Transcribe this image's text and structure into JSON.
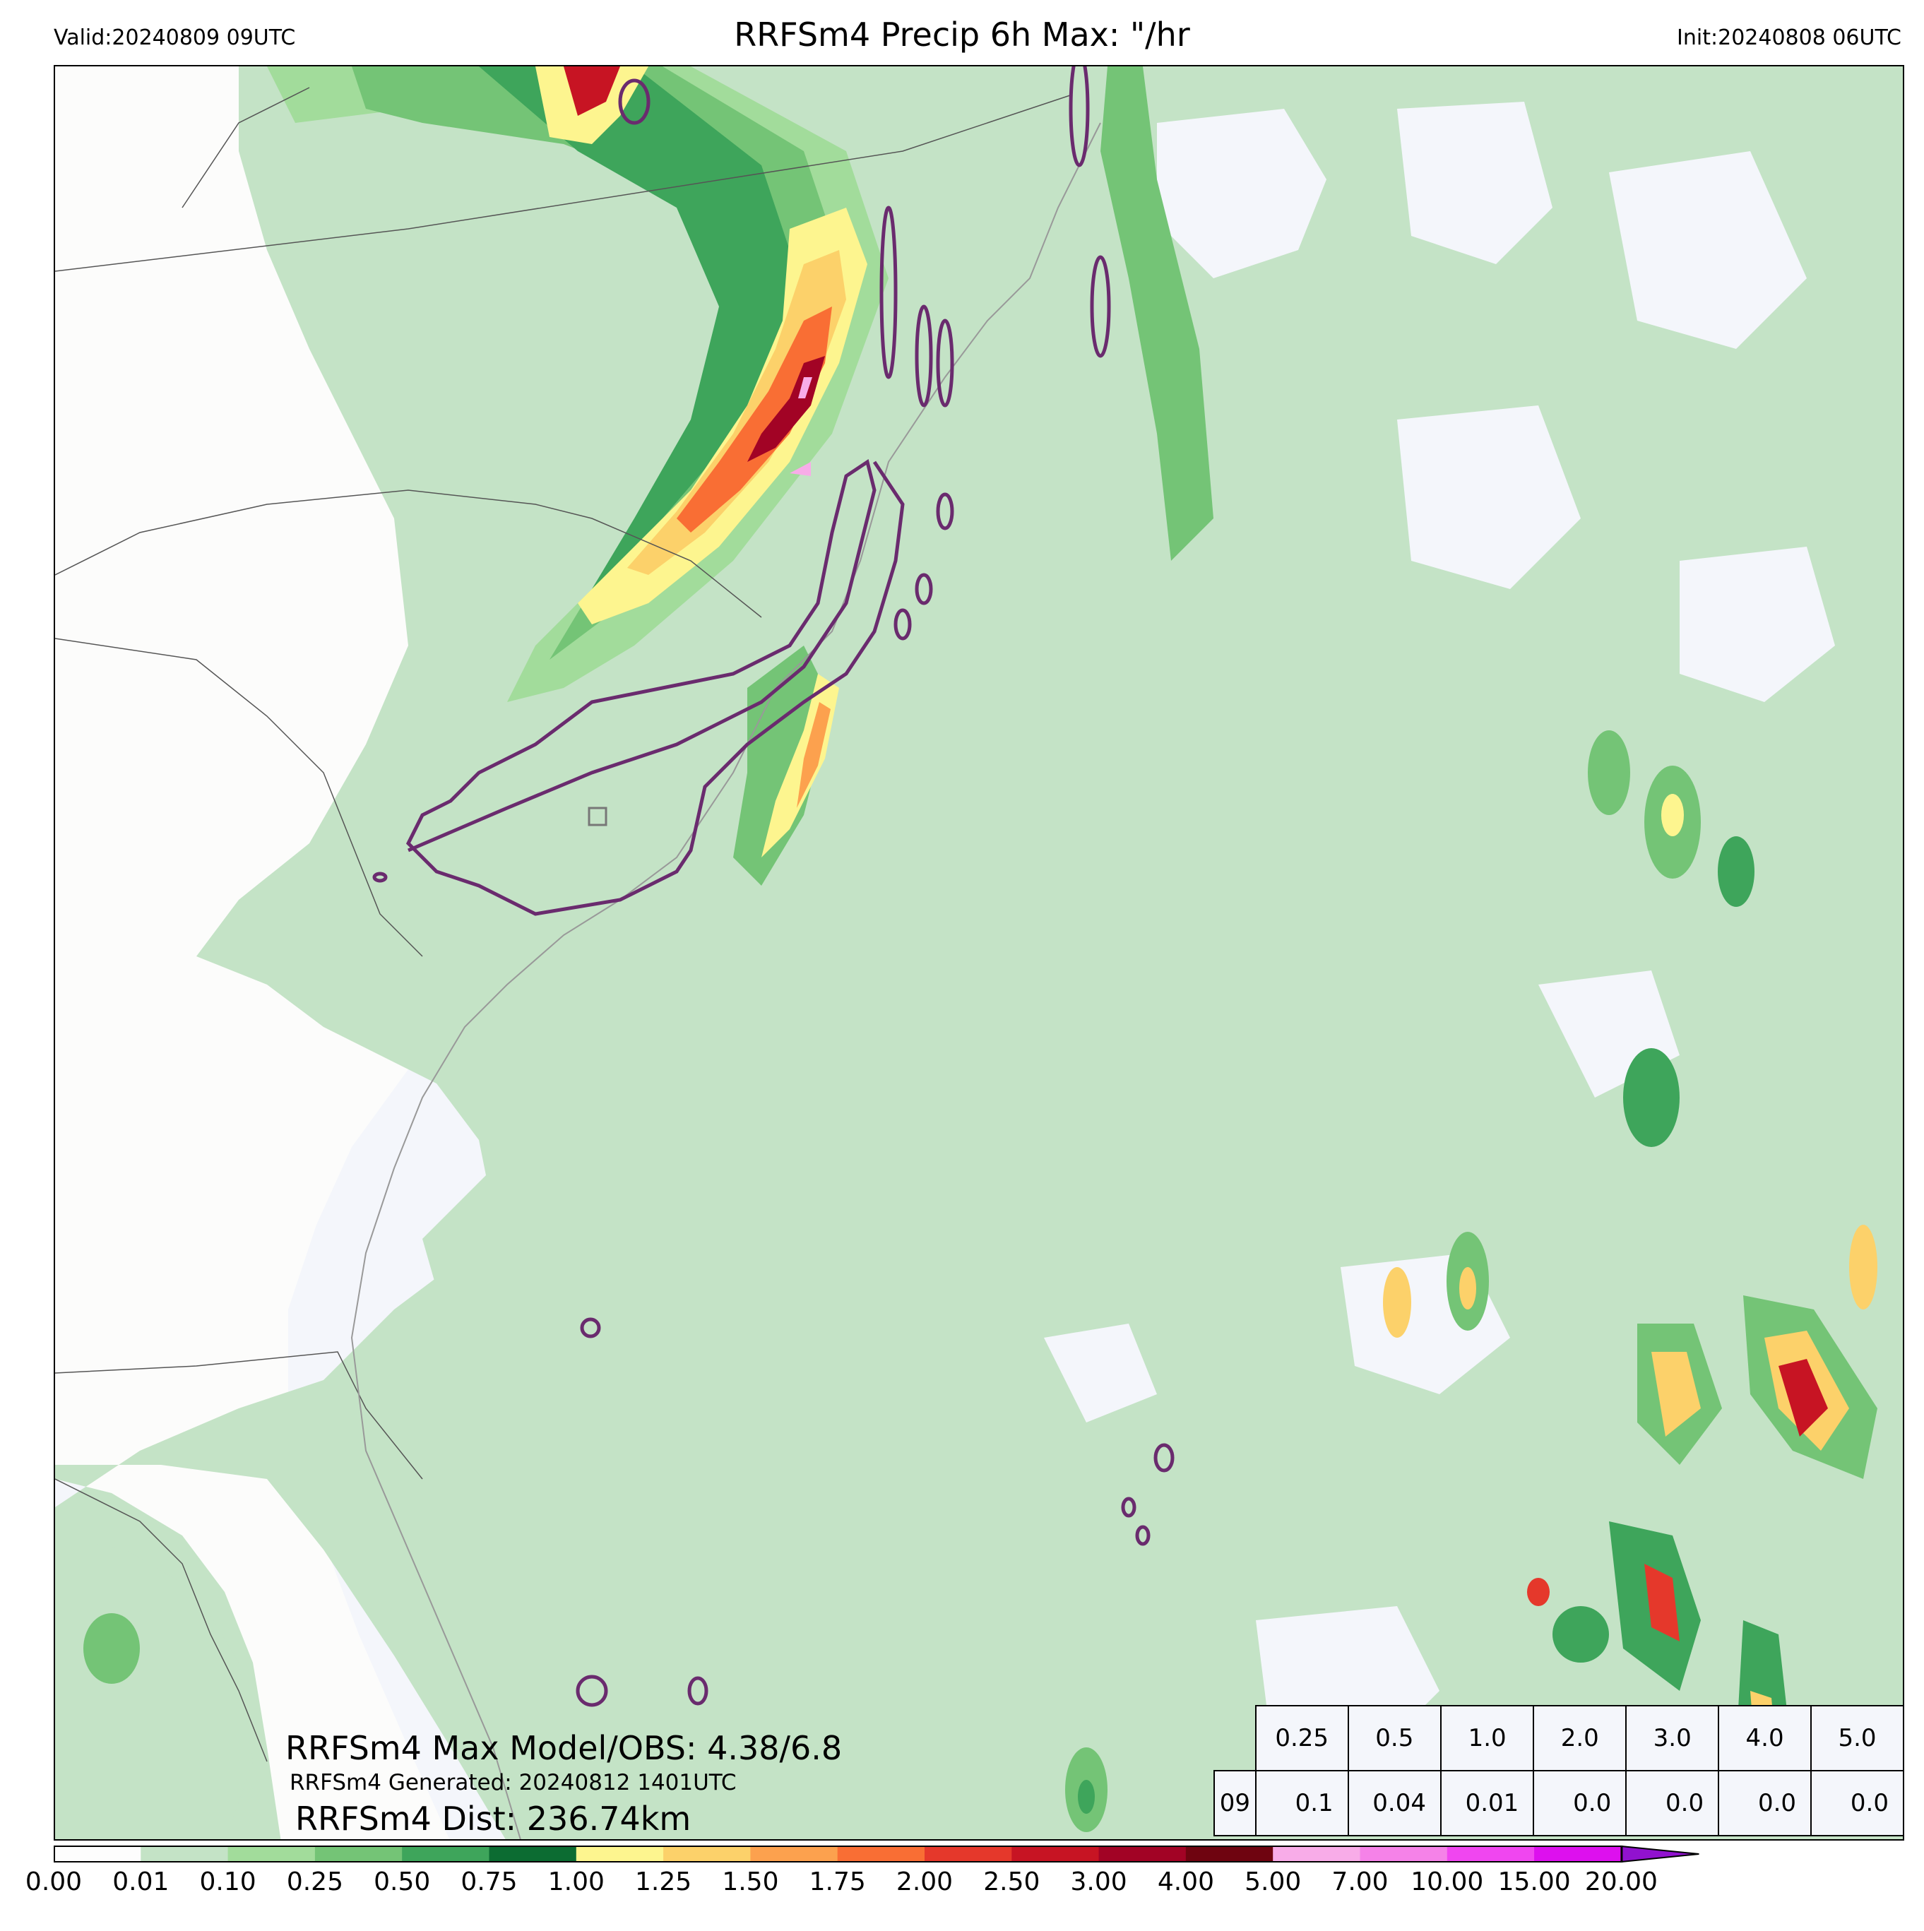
{
  "header": {
    "valid": "Valid:20240809 09UTC",
    "title": "RRFSm4 Precip 6h Max: \"/hr",
    "init": "Init:20240808 06UTC"
  },
  "annotations": {
    "max_model_obs": "RRFSm4 Max Model/OBS: 4.38/6.8",
    "generated": "RRFSm4 Generated: 20240812 1401UTC",
    "distance": "RRFSm4 Dist: 236.74km"
  },
  "stats_table": {
    "thresholds": [
      "0.25",
      "0.5",
      "1.0",
      "2.0",
      "3.0",
      "4.0",
      "5.0"
    ],
    "row_label": "09",
    "values": [
      "0.1",
      "0.04",
      "0.01",
      "0.0",
      "0.0",
      "0.0",
      "0.0"
    ]
  },
  "colorbar": {
    "ticks": [
      "0.00",
      "0.01",
      "0.10",
      "0.25",
      "0.50",
      "0.75",
      "1.00",
      "1.25",
      "1.50",
      "1.75",
      "2.00",
      "2.50",
      "3.00",
      "4.00",
      "5.00",
      "7.00",
      "10.00",
      "15.00",
      "20.00"
    ],
    "colors": [
      "#fdfdfd",
      "#c4e3c6",
      "#a2dc9b",
      "#74c476",
      "#3ea55b",
      "#0c6c32",
      "#fdf58f",
      "#fcd16a",
      "#fca14e",
      "#f96e34",
      "#e5382b",
      "#c71423",
      "#a20325",
      "#6f0410",
      "#f8ace8",
      "#f582e8",
      "#f046f0",
      "#dd10ee",
      "#9112cf"
    ],
    "extend_color": "#9112cf"
  },
  "map": {
    "land_color": "#fcfcfb",
    "ocean_color": "#f4f6fb",
    "observation_contour_color": "#6a2b6e"
  }
}
